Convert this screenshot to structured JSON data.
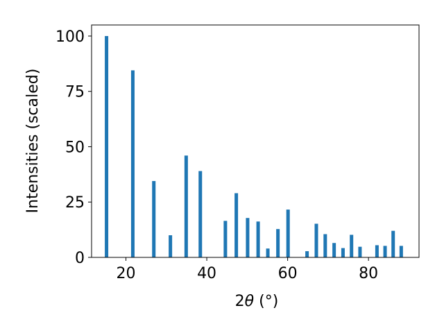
{
  "chart_data": {
    "type": "bar",
    "xlabel_base": "2",
    "xlabel_symbol": "θ",
    "xlabel_unit": " (°)",
    "ylabel": "Intensities (scaled)",
    "xlim": [
      11.5,
      92.5
    ],
    "ylim": [
      0,
      105
    ],
    "grid": false,
    "bar_color": "#1f77b4",
    "x_ticks": [
      20,
      40,
      60,
      80
    ],
    "y_ticks": [
      0,
      25,
      50,
      75,
      100
    ],
    "x": [
      15.2,
      21.7,
      26.9,
      31.0,
      34.9,
      38.4,
      44.6,
      47.3,
      50.1,
      52.7,
      55.1,
      57.6,
      60.1,
      64.8,
      67.1,
      69.3,
      71.5,
      73.7,
      75.8,
      77.9,
      82.1,
      84.1,
      86.1,
      88.1
    ],
    "values": [
      100,
      84.5,
      34.5,
      10,
      46,
      39,
      16.5,
      29,
      17.8,
      16.2,
      4,
      12.8,
      21.6,
      2.8,
      15.2,
      10.5,
      6.5,
      4.2,
      10.2,
      4.8,
      5.5,
      5.2,
      12,
      5.2
    ]
  }
}
